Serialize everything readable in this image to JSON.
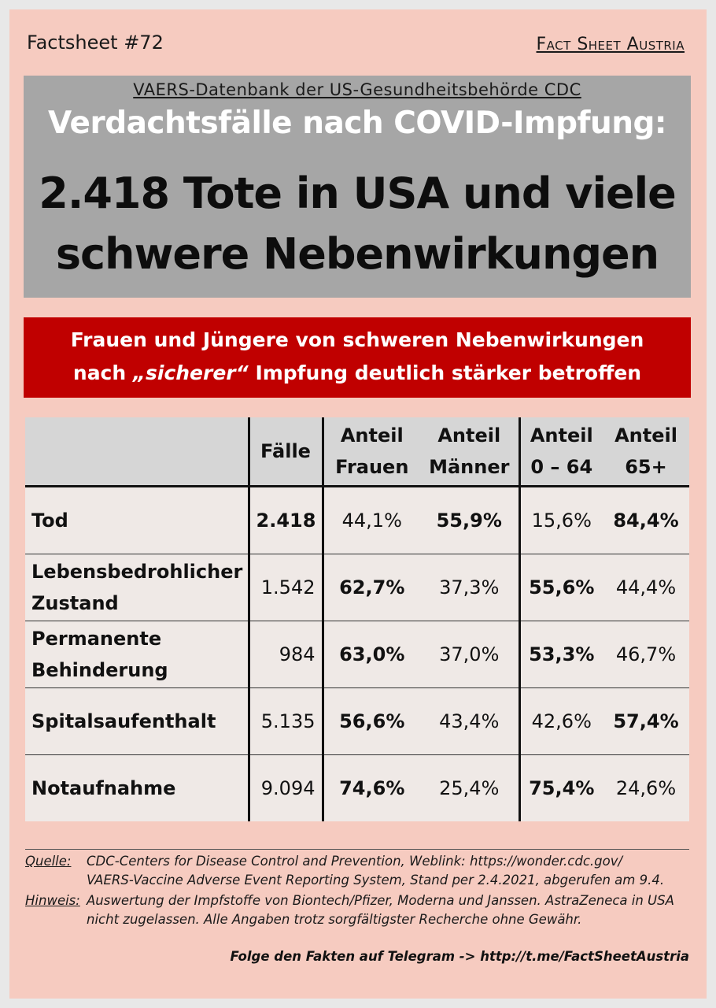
{
  "header": {
    "factsheet_no": "Factsheet #72",
    "brand": "Fact Sheet Austria"
  },
  "headline": {
    "supertitle": "VAERS-Datenbank der US-Gesundheitsbehörde CDC",
    "title_white": "Verdachtsfälle nach COVID-Impfung:",
    "title_line1": "2.418 Tote in USA und viele",
    "title_line2": "schwere Nebenwirkungen"
  },
  "subhead": {
    "line1": "Frauen und Jüngere von schweren Nebenwirkungen",
    "line2_pre": "nach ",
    "line2_em": "„sicherer“",
    "line2_post": " Impfung deutlich stärker betroffen"
  },
  "table": {
    "columns": [
      {
        "line1": "Fälle",
        "line2": ""
      },
      {
        "line1": "Anteil",
        "line2": "Frauen"
      },
      {
        "line1": "Anteil",
        "line2": "Männer"
      },
      {
        "line1": "Anteil",
        "line2": "0 – 64"
      },
      {
        "line1": "Anteil",
        "line2": "65+"
      }
    ],
    "rows": [
      {
        "label1": "Tod",
        "label2": "",
        "cases": "2.418",
        "women": "44,1%",
        "men": "55,9%",
        "age_0_64": "15,6%",
        "age_65": "84,4%"
      },
      {
        "label1": "Lebensbedrohlicher",
        "label2": "Zustand",
        "cases": "1.542",
        "women": "62,7%",
        "men": "37,3%",
        "age_0_64": "55,6%",
        "age_65": "44,4%"
      },
      {
        "label1": "Permanente",
        "label2": "Behinderung",
        "cases": "984",
        "women": "63,0%",
        "men": "37,0%",
        "age_0_64": "53,3%",
        "age_65": "46,7%"
      },
      {
        "label1": "Spitalsaufenthalt",
        "label2": "",
        "cases": "5.135",
        "women": "56,6%",
        "men": "43,4%",
        "age_0_64": "42,6%",
        "age_65": "57,4%"
      },
      {
        "label1": "Notaufnahme",
        "label2": "",
        "cases": "9.094",
        "women": "74,6%",
        "men": "25,4%",
        "age_0_64": "75,4%",
        "age_65": "24,6%"
      }
    ]
  },
  "footer": {
    "source_label": "Quelle:",
    "source_line1": "CDC-Centers for Disease Control and Prevention, Weblink:  https://wonder.cdc.gov/",
    "source_line2": "VAERS-Vaccine Adverse Event Reporting System,  Stand per 2.4.2021, abgerufen am 9.4.",
    "note_label": "Hinweis:",
    "note_line1": "Auswertung der Impfstoffe von Biontech/Pfizer, Moderna und Janssen. AstraZeneca in USA",
    "note_line2": "nicht zugelassen. Alle Angaben trotz sorgfältigster Recherche ohne Gewähr.",
    "telegram": "Folge den Fakten auf Telegram  ->  http://t.me/FactSheetAustria"
  }
}
